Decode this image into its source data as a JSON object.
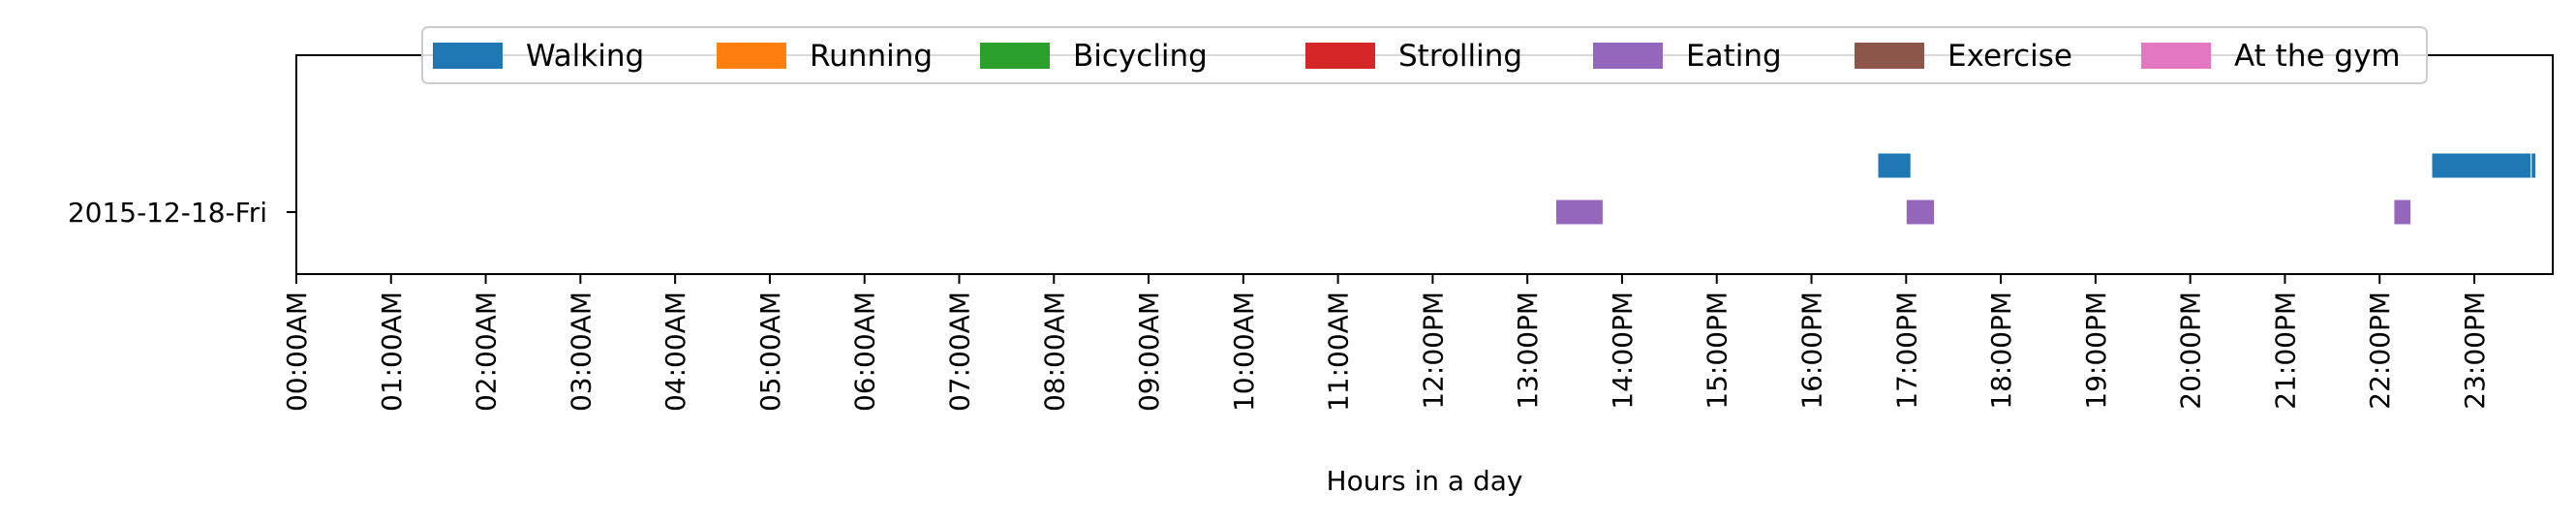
{
  "chart_data": {
    "type": "timeline",
    "title": "",
    "xlabel": "Hours in a day",
    "ylabel": "",
    "xlim": [
      0,
      24
    ],
    "x_ticks": [
      {
        "value": 0,
        "label": "00:00AM"
      },
      {
        "value": 1,
        "label": "01:00AM"
      },
      {
        "value": 2,
        "label": "02:00AM"
      },
      {
        "value": 3,
        "label": "03:00AM"
      },
      {
        "value": 4,
        "label": "04:00AM"
      },
      {
        "value": 5,
        "label": "05:00AM"
      },
      {
        "value": 6,
        "label": "06:00AM"
      },
      {
        "value": 7,
        "label": "07:00AM"
      },
      {
        "value": 8,
        "label": "08:00AM"
      },
      {
        "value": 9,
        "label": "09:00AM"
      },
      {
        "value": 10,
        "label": "10:00AM"
      },
      {
        "value": 11,
        "label": "11:00AM"
      },
      {
        "value": 12,
        "label": "12:00PM"
      },
      {
        "value": 13,
        "label": "13:00PM"
      },
      {
        "value": 14,
        "label": "14:00PM"
      },
      {
        "value": 15,
        "label": "15:00PM"
      },
      {
        "value": 16,
        "label": "16:00PM"
      },
      {
        "value": 17,
        "label": "17:00PM"
      },
      {
        "value": 18,
        "label": "18:00PM"
      },
      {
        "value": 19,
        "label": "19:00PM"
      },
      {
        "value": 20,
        "label": "20:00PM"
      },
      {
        "value": 21,
        "label": "21:00PM"
      },
      {
        "value": 22,
        "label": "22:00PM"
      },
      {
        "value": 23,
        "label": "23:00PM"
      }
    ],
    "rows": [
      "2015-12-18-Fri"
    ],
    "grid": false,
    "legend_position": "top-center",
    "series": [
      {
        "name": "Walking",
        "color": "#1f77b4",
        "track": -1,
        "segments": [
          [
            16.7,
            17.05
          ],
          [
            22.55,
            23.6
          ],
          [
            23.6,
            23.65
          ]
        ]
      },
      {
        "name": "Running",
        "color": "#ff7f0e",
        "track": 0,
        "segments": []
      },
      {
        "name": "Bicycling",
        "color": "#2ca02c",
        "track": 0,
        "segments": []
      },
      {
        "name": "Strolling",
        "color": "#d62728",
        "track": 0,
        "segments": []
      },
      {
        "name": "Eating",
        "color": "#9467bd",
        "track": 0,
        "segments": [
          [
            13.3,
            13.8
          ],
          [
            17.0,
            17.3
          ],
          [
            22.15,
            22.33
          ]
        ]
      },
      {
        "name": "Exercise",
        "color": "#8c564b",
        "track": 0,
        "segments": []
      },
      {
        "name": "At the gym",
        "color": "#e377c2",
        "track": 0,
        "segments": []
      }
    ]
  }
}
